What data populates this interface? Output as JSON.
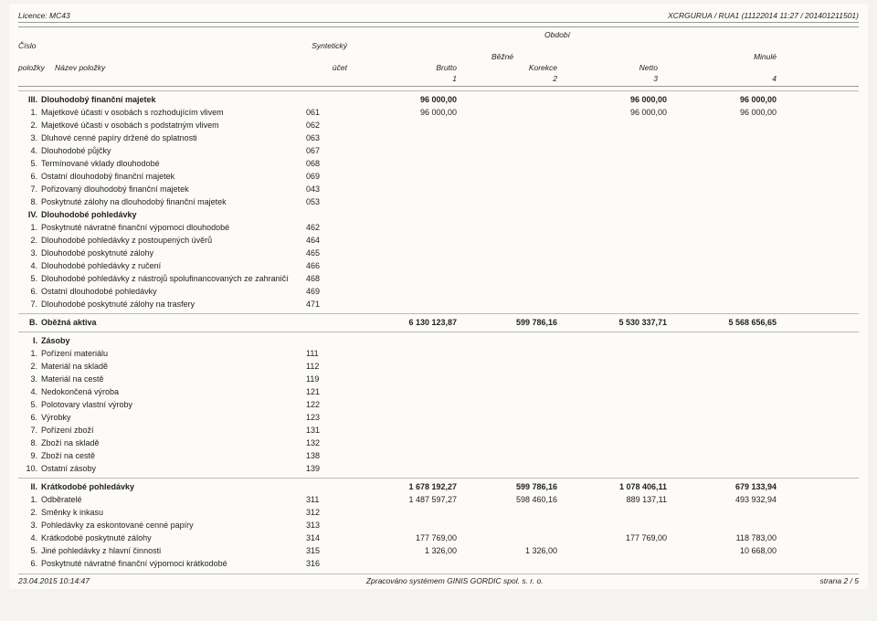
{
  "header": {
    "licence": "Licence: MC43",
    "system": "XCRGURUA / RUA1 (11122014 11:27 / 201401211501)",
    "col_cislo": "Číslo",
    "col_polozky": "položky",
    "col_nazev": "Název položky",
    "col_synt": "Syntetický",
    "col_ucet": "účet",
    "col_obdobi": "Období",
    "col_bezne": "Běžné",
    "col_brutto": "Brutto",
    "col_korekce": "Korekce",
    "col_netto": "Netto",
    "col_minule": "Minulé",
    "n1": "1",
    "n2": "2",
    "n3": "3",
    "n4": "4"
  },
  "sections": {
    "III": {
      "num": "III.",
      "title": "Dlouhodobý finanční majetek",
      "brutto": "96 000,00",
      "netto": "96 000,00",
      "minule": "96 000,00",
      "rows": [
        {
          "n": "1.",
          "name": "Majetkové účasti v osobách s rozhodujícím vlivem",
          "acct": "061",
          "brutto": "96 000,00",
          "netto": "96 000,00",
          "minule": "96 000,00"
        },
        {
          "n": "2.",
          "name": "Majetkové účasti v osobách s podstatným vlivem",
          "acct": "062"
        },
        {
          "n": "3.",
          "name": "Dluhové cenné papíry držené do splatnosti",
          "acct": "063"
        },
        {
          "n": "4.",
          "name": "Dlouhodobé půjčky",
          "acct": "067"
        },
        {
          "n": "5.",
          "name": "Termínované vklady dlouhodobé",
          "acct": "068"
        },
        {
          "n": "6.",
          "name": "Ostatní dlouhodobý finanční majetek",
          "acct": "069"
        },
        {
          "n": "7.",
          "name": "Pořizovaný dlouhodobý finanční majetek",
          "acct": "043"
        },
        {
          "n": "8.",
          "name": "Poskytnuté zálohy na dlouhodobý finanční majetek",
          "acct": "053"
        }
      ]
    },
    "IV": {
      "num": "IV.",
      "title": "Dlouhodobé pohledávky",
      "rows": [
        {
          "n": "1.",
          "name": "Poskytnuté návratné finanční výpomoci dlouhodobé",
          "acct": "462"
        },
        {
          "n": "2.",
          "name": "Dlouhodobé pohledávky z postoupených úvěrů",
          "acct": "464"
        },
        {
          "n": "3.",
          "name": "Dlouhodobé poskytnuté zálohy",
          "acct": "465"
        },
        {
          "n": "4.",
          "name": "Dlouhodobé pohledávky z ručení",
          "acct": "466"
        },
        {
          "n": "5.",
          "name": "Dlouhodobé pohledávky z nástrojů spolufinancovaných ze zahraničí",
          "acct": "468"
        },
        {
          "n": "6.",
          "name": "Ostatní dlouhodobé pohledávky",
          "acct": "469"
        },
        {
          "n": "7.",
          "name": "Dlouhodobé poskytnuté zálohy na trasfery",
          "acct": "471"
        }
      ]
    },
    "B": {
      "num": "B.",
      "title": "Oběžná aktiva",
      "brutto": "6 130 123,87",
      "kor": "599 786,16",
      "netto": "5 530 337,71",
      "minule": "5 568 656,65"
    },
    "I": {
      "num": "I.",
      "title": "Zásoby",
      "rows": [
        {
          "n": "1.",
          "name": "Pořízení materiálu",
          "acct": "111"
        },
        {
          "n": "2.",
          "name": "Materiál na skladě",
          "acct": "112"
        },
        {
          "n": "3.",
          "name": "Materiál na cestě",
          "acct": "119"
        },
        {
          "n": "4.",
          "name": "Nedokončená výroba",
          "acct": "121"
        },
        {
          "n": "5.",
          "name": "Polotovary vlastní výroby",
          "acct": "122"
        },
        {
          "n": "6.",
          "name": "Výrobky",
          "acct": "123"
        },
        {
          "n": "7.",
          "name": "Pořízení zboží",
          "acct": "131"
        },
        {
          "n": "8.",
          "name": "Zboží na skladě",
          "acct": "132"
        },
        {
          "n": "9.",
          "name": "Zboží na cestě",
          "acct": "138"
        },
        {
          "n": "10.",
          "name": "Ostatní zásoby",
          "acct": "139"
        }
      ]
    },
    "II": {
      "num": "II.",
      "title": "Krátkodobé pohledávky",
      "brutto": "1 678 192,27",
      "kor": "599 786,16",
      "netto": "1 078 406,11",
      "minule": "679 133,94",
      "rows": [
        {
          "n": "1.",
          "name": "Odběratelé",
          "acct": "311",
          "brutto": "1 487 597,27",
          "kor": "598 460,16",
          "netto": "889 137,11",
          "minule": "493 932,94"
        },
        {
          "n": "2.",
          "name": "Směnky k inkasu",
          "acct": "312"
        },
        {
          "n": "3.",
          "name": "Pohledávky za eskontované cenné papíry",
          "acct": "313"
        },
        {
          "n": "4.",
          "name": "Krátkodobé poskytnuté zálohy",
          "acct": "314",
          "brutto": "177 769,00",
          "netto": "177 769,00",
          "minule": "118 783,00"
        },
        {
          "n": "5.",
          "name": "Jiné pohledávky z hlavní činnosti",
          "acct": "315",
          "brutto": "1 326,00",
          "kor": "1 326,00",
          "minule": "10 668,00"
        },
        {
          "n": "6.",
          "name": "Poskytnuté návratné finanční výpomoci krátkodobé",
          "acct": "316"
        }
      ]
    }
  },
  "footer": {
    "date": "23.04.2015 10:14:47",
    "center": "Zpracováno systémem GINIS GORDIC spol. s. r. o.",
    "page": "strana 2 / 5"
  }
}
